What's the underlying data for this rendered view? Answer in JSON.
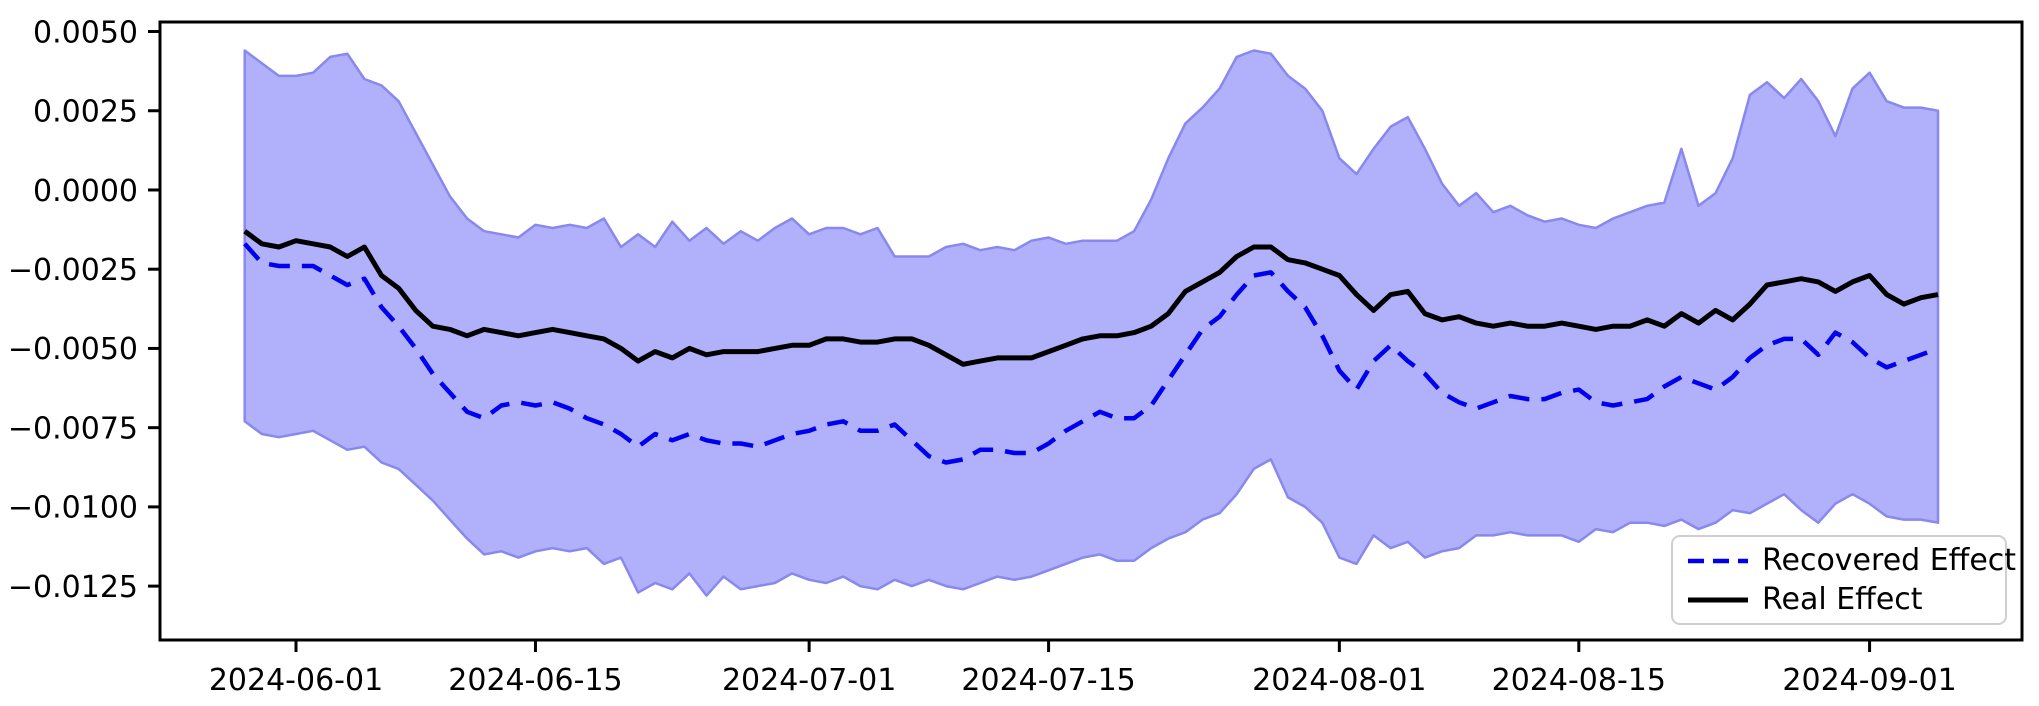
{
  "chart_data": {
    "type": "line",
    "title": "",
    "xlabel": "",
    "ylabel": "",
    "grid": false,
    "background": "#ffffff",
    "ylim": [
      -0.0142,
      0.0053
    ],
    "x_start": "2024-05-29",
    "x_freq": "daily",
    "dates": [
      "2024-05-29",
      "2024-05-30",
      "2024-05-31",
      "2024-06-01",
      "2024-06-02",
      "2024-06-03",
      "2024-06-04",
      "2024-06-05",
      "2024-06-06",
      "2024-06-07",
      "2024-06-08",
      "2024-06-09",
      "2024-06-10",
      "2024-06-11",
      "2024-06-12",
      "2024-06-13",
      "2024-06-14",
      "2024-06-15",
      "2024-06-16",
      "2024-06-17",
      "2024-06-18",
      "2024-06-19",
      "2024-06-20",
      "2024-06-21",
      "2024-06-22",
      "2024-06-23",
      "2024-06-24",
      "2024-06-25",
      "2024-06-26",
      "2024-06-27",
      "2024-06-28",
      "2024-06-29",
      "2024-06-30",
      "2024-07-01",
      "2024-07-02",
      "2024-07-03",
      "2024-07-04",
      "2024-07-05",
      "2024-07-06",
      "2024-07-07",
      "2024-07-08",
      "2024-07-09",
      "2024-07-10",
      "2024-07-11",
      "2024-07-12",
      "2024-07-13",
      "2024-07-14",
      "2024-07-15",
      "2024-07-16",
      "2024-07-17",
      "2024-07-18",
      "2024-07-19",
      "2024-07-20",
      "2024-07-21",
      "2024-07-22",
      "2024-07-23",
      "2024-07-24",
      "2024-07-25",
      "2024-07-26",
      "2024-07-27",
      "2024-07-28",
      "2024-07-29",
      "2024-07-30",
      "2024-07-31",
      "2024-08-01",
      "2024-08-02",
      "2024-08-03",
      "2024-08-04",
      "2024-08-05",
      "2024-08-06",
      "2024-08-07",
      "2024-08-08",
      "2024-08-09",
      "2024-08-10",
      "2024-08-11",
      "2024-08-12",
      "2024-08-13",
      "2024-08-14",
      "2024-08-15",
      "2024-08-16",
      "2024-08-17",
      "2024-08-18",
      "2024-08-19",
      "2024-08-20",
      "2024-08-21",
      "2024-08-22",
      "2024-08-23",
      "2024-08-24",
      "2024-08-25",
      "2024-08-26",
      "2024-08-27",
      "2024-08-28",
      "2024-08-29",
      "2024-08-30",
      "2024-08-31",
      "2024-09-01",
      "2024-09-02",
      "2024-09-03",
      "2024-09-04",
      "2024-09-05"
    ],
    "series": [
      {
        "name": "Recovered Effect",
        "style": "dashed",
        "color": "#0000ee",
        "line_width": 4.5,
        "values": [
          -0.0017,
          -0.0023,
          -0.0024,
          -0.0024,
          -0.0024,
          -0.0027,
          -0.003,
          -0.0028,
          -0.0037,
          -0.0043,
          -0.005,
          -0.0058,
          -0.0064,
          -0.007,
          -0.0072,
          -0.0068,
          -0.0067,
          -0.0068,
          -0.0067,
          -0.0069,
          -0.0072,
          -0.0074,
          -0.0077,
          -0.0081,
          -0.0077,
          -0.0079,
          -0.0077,
          -0.0079,
          -0.008,
          -0.008,
          -0.0081,
          -0.0079,
          -0.0077,
          -0.0076,
          -0.0074,
          -0.0073,
          -0.0076,
          -0.0076,
          -0.0074,
          -0.0079,
          -0.0084,
          -0.0086,
          -0.0085,
          -0.0082,
          -0.0082,
          -0.0083,
          -0.0083,
          -0.008,
          -0.0076,
          -0.0073,
          -0.007,
          -0.0072,
          -0.0072,
          -0.0068,
          -0.006,
          -0.0052,
          -0.0044,
          -0.004,
          -0.0033,
          -0.0027,
          -0.0026,
          -0.0032,
          -0.0037,
          -0.0046,
          -0.0057,
          -0.0063,
          -0.0054,
          -0.0049,
          -0.0054,
          -0.0058,
          -0.0064,
          -0.0067,
          -0.0069,
          -0.0067,
          -0.0065,
          -0.0066,
          -0.0066,
          -0.0064,
          -0.0063,
          -0.0067,
          -0.0068,
          -0.0067,
          -0.0066,
          -0.0062,
          -0.0059,
          -0.0061,
          -0.0063,
          -0.0059,
          -0.0053,
          -0.0049,
          -0.0047,
          -0.0047,
          -0.0052,
          -0.0045,
          -0.0048,
          -0.0053,
          -0.0056,
          -0.0054,
          -0.0052,
          -0.005
        ]
      },
      {
        "name": "Real Effect",
        "style": "solid",
        "color": "#000000",
        "line_width": 5,
        "values": [
          -0.0013,
          -0.0017,
          -0.0018,
          -0.0016,
          -0.0017,
          -0.0018,
          -0.0021,
          -0.0018,
          -0.0027,
          -0.0031,
          -0.0038,
          -0.0043,
          -0.0044,
          -0.0046,
          -0.0044,
          -0.0045,
          -0.0046,
          -0.0045,
          -0.0044,
          -0.0045,
          -0.0046,
          -0.0047,
          -0.005,
          -0.0054,
          -0.0051,
          -0.0053,
          -0.005,
          -0.0052,
          -0.0051,
          -0.0051,
          -0.0051,
          -0.005,
          -0.0049,
          -0.0049,
          -0.0047,
          -0.0047,
          -0.0048,
          -0.0048,
          -0.0047,
          -0.0047,
          -0.0049,
          -0.0052,
          -0.0055,
          -0.0054,
          -0.0053,
          -0.0053,
          -0.0053,
          -0.0051,
          -0.0049,
          -0.0047,
          -0.0046,
          -0.0046,
          -0.0045,
          -0.0043,
          -0.0039,
          -0.0032,
          -0.0029,
          -0.0026,
          -0.0021,
          -0.0018,
          -0.0018,
          -0.0022,
          -0.0023,
          -0.0025,
          -0.0027,
          -0.0033,
          -0.0038,
          -0.0033,
          -0.0032,
          -0.0039,
          -0.0041,
          -0.004,
          -0.0042,
          -0.0043,
          -0.0042,
          -0.0043,
          -0.0043,
          -0.0042,
          -0.0043,
          -0.0044,
          -0.0043,
          -0.0043,
          -0.0041,
          -0.0043,
          -0.0039,
          -0.0042,
          -0.0038,
          -0.0041,
          -0.0036,
          -0.003,
          -0.0029,
          -0.0028,
          -0.0029,
          -0.0032,
          -0.0029,
          -0.0027,
          -0.0033,
          -0.0036,
          -0.0034,
          -0.0033
        ]
      }
    ],
    "band": {
      "name": "confidence-band",
      "fill_color": "#b1b1fb",
      "edge_color": "#8888ee",
      "upper": [
        0.0044,
        0.004,
        0.0036,
        0.0036,
        0.0037,
        0.0042,
        0.0043,
        0.0035,
        0.0033,
        0.0028,
        0.0018,
        0.0008,
        -0.0002,
        -0.0009,
        -0.0013,
        -0.0014,
        -0.0015,
        -0.0011,
        -0.0012,
        -0.0011,
        -0.0012,
        -0.0009,
        -0.0018,
        -0.0014,
        -0.0018,
        -0.001,
        -0.0016,
        -0.0012,
        -0.0017,
        -0.0013,
        -0.0016,
        -0.0012,
        -0.0009,
        -0.0014,
        -0.0012,
        -0.0012,
        -0.0014,
        -0.0012,
        -0.0021,
        -0.0021,
        -0.0021,
        -0.0018,
        -0.0017,
        -0.0019,
        -0.0018,
        -0.0019,
        -0.0016,
        -0.0015,
        -0.0017,
        -0.0016,
        -0.0016,
        -0.0016,
        -0.0013,
        -0.0003,
        0.001,
        0.0021,
        0.0026,
        0.0032,
        0.0042,
        0.0044,
        0.0043,
        0.0036,
        0.0032,
        0.0025,
        0.001,
        0.0005,
        0.0013,
        0.002,
        0.0023,
        0.0013,
        0.0002,
        -0.0005,
        -0.0001,
        -0.0007,
        -0.0005,
        -0.0008,
        -0.001,
        -0.0009,
        -0.0011,
        -0.0012,
        -0.0009,
        -0.0007,
        -0.0005,
        -0.0004,
        0.0013,
        -0.0005,
        -0.0001,
        0.001,
        0.003,
        0.0034,
        0.0029,
        0.0035,
        0.0028,
        0.0017,
        0.0032,
        0.0037,
        0.0028,
        0.0026,
        0.0026,
        0.0025
      ],
      "lower": [
        -0.0073,
        -0.0077,
        -0.0078,
        -0.0077,
        -0.0076,
        -0.0079,
        -0.0082,
        -0.0081,
        -0.0086,
        -0.0088,
        -0.0093,
        -0.0098,
        -0.0104,
        -0.011,
        -0.0115,
        -0.0114,
        -0.0116,
        -0.0114,
        -0.0113,
        -0.0114,
        -0.0113,
        -0.0118,
        -0.0116,
        -0.0127,
        -0.0124,
        -0.0126,
        -0.0121,
        -0.0128,
        -0.0122,
        -0.0126,
        -0.0125,
        -0.0124,
        -0.0121,
        -0.0123,
        -0.0124,
        -0.0122,
        -0.0125,
        -0.0126,
        -0.0123,
        -0.0125,
        -0.0123,
        -0.0125,
        -0.0126,
        -0.0124,
        -0.0122,
        -0.0123,
        -0.0122,
        -0.012,
        -0.0118,
        -0.0116,
        -0.0115,
        -0.0117,
        -0.0117,
        -0.0113,
        -0.011,
        -0.0108,
        -0.0104,
        -0.0102,
        -0.0096,
        -0.0088,
        -0.0085,
        -0.0097,
        -0.01,
        -0.0105,
        -0.0116,
        -0.0118,
        -0.0109,
        -0.0113,
        -0.0111,
        -0.0116,
        -0.0114,
        -0.0113,
        -0.0109,
        -0.0109,
        -0.0108,
        -0.0109,
        -0.0109,
        -0.0109,
        -0.0111,
        -0.0107,
        -0.0108,
        -0.0105,
        -0.0105,
        -0.0106,
        -0.0104,
        -0.0107,
        -0.0105,
        -0.0101,
        -0.0102,
        -0.0099,
        -0.0096,
        -0.0101,
        -0.0105,
        -0.0099,
        -0.0096,
        -0.0099,
        -0.0103,
        -0.0104,
        -0.0104,
        -0.0105
      ]
    },
    "y_ticks": [
      {
        "label": "0.0050",
        "value": 0.005
      },
      {
        "label": "0.0025",
        "value": 0.0025
      },
      {
        "label": "0.0000",
        "value": 0.0
      },
      {
        "label": "−0.0025",
        "value": -0.0025
      },
      {
        "label": "−0.0050",
        "value": -0.005
      },
      {
        "label": "−0.0075",
        "value": -0.0075
      },
      {
        "label": "−0.0100",
        "value": -0.01
      },
      {
        "label": "−0.0125",
        "value": -0.0125
      }
    ],
    "x_ticks": [
      {
        "label": "2024-06-01",
        "index": 3
      },
      {
        "label": "2024-06-15",
        "index": 17
      },
      {
        "label": "2024-07-01",
        "index": 33
      },
      {
        "label": "2024-07-15",
        "index": 47
      },
      {
        "label": "2024-08-01",
        "index": 64
      },
      {
        "label": "2024-08-15",
        "index": 78
      },
      {
        "label": "2024-09-01",
        "index": 95
      }
    ],
    "legend": {
      "position": "lower right",
      "entries": [
        "Recovered Effect",
        "Real Effect"
      ]
    },
    "axis_color": "#000000",
    "tick_font_size": 30
  }
}
